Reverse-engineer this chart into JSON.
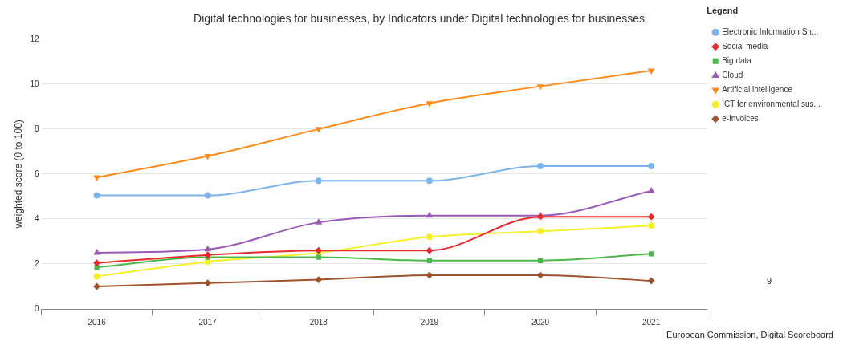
{
  "chart_data": {
    "type": "line",
    "title": "Digital technologies for businesses, by Indicators under Digital technologies for businesses",
    "ylabel": "weighted score (0 to 100)",
    "legend_title": "Legend",
    "legend": "top right",
    "grid": "y",
    "categories": [
      "2016",
      "2017",
      "2018",
      "2019",
      "2020",
      "2021"
    ],
    "ylim": [
      0,
      12
    ],
    "yticks": [
      0,
      2,
      4,
      6,
      8,
      10,
      12
    ],
    "series": [
      {
        "name": "Electronic Information Sh...",
        "color": "#7cb5ec",
        "marker": "circle",
        "values": [
          5.05,
          5.05,
          5.7,
          5.7,
          6.35,
          6.35
        ]
      },
      {
        "name": "Social media",
        "color": "#e8292e",
        "marker": "diamond",
        "values": [
          2.05,
          2.4,
          2.6,
          2.6,
          4.1,
          4.1
        ]
      },
      {
        "name": "Big data",
        "color": "#4cb84c",
        "marker": "square",
        "values": [
          1.85,
          2.3,
          2.3,
          2.15,
          2.15,
          2.45
        ]
      },
      {
        "name": "Cloud",
        "color": "#9b59b6",
        "marker": "triangle",
        "values": [
          2.5,
          2.65,
          3.85,
          4.15,
          4.15,
          5.25
        ]
      },
      {
        "name": "Artificial intelligence",
        "color": "#ff8c1a",
        "marker": "triangle-down",
        "values": [
          5.85,
          6.8,
          8.0,
          9.15,
          9.9,
          10.6
        ]
      },
      {
        "name": "ICT for environmental sus...",
        "color": "#f5f02a",
        "marker": "circle",
        "values": [
          1.45,
          2.1,
          2.5,
          3.2,
          3.45,
          3.7
        ]
      },
      {
        "name": "e-Invoices",
        "color": "#a0522d",
        "marker": "diamond",
        "values": [
          1.0,
          1.15,
          1.3,
          1.5,
          1.5,
          1.25
        ]
      }
    ],
    "annotations": [
      "European Commission, Digital Scoreboard",
      "9"
    ]
  }
}
